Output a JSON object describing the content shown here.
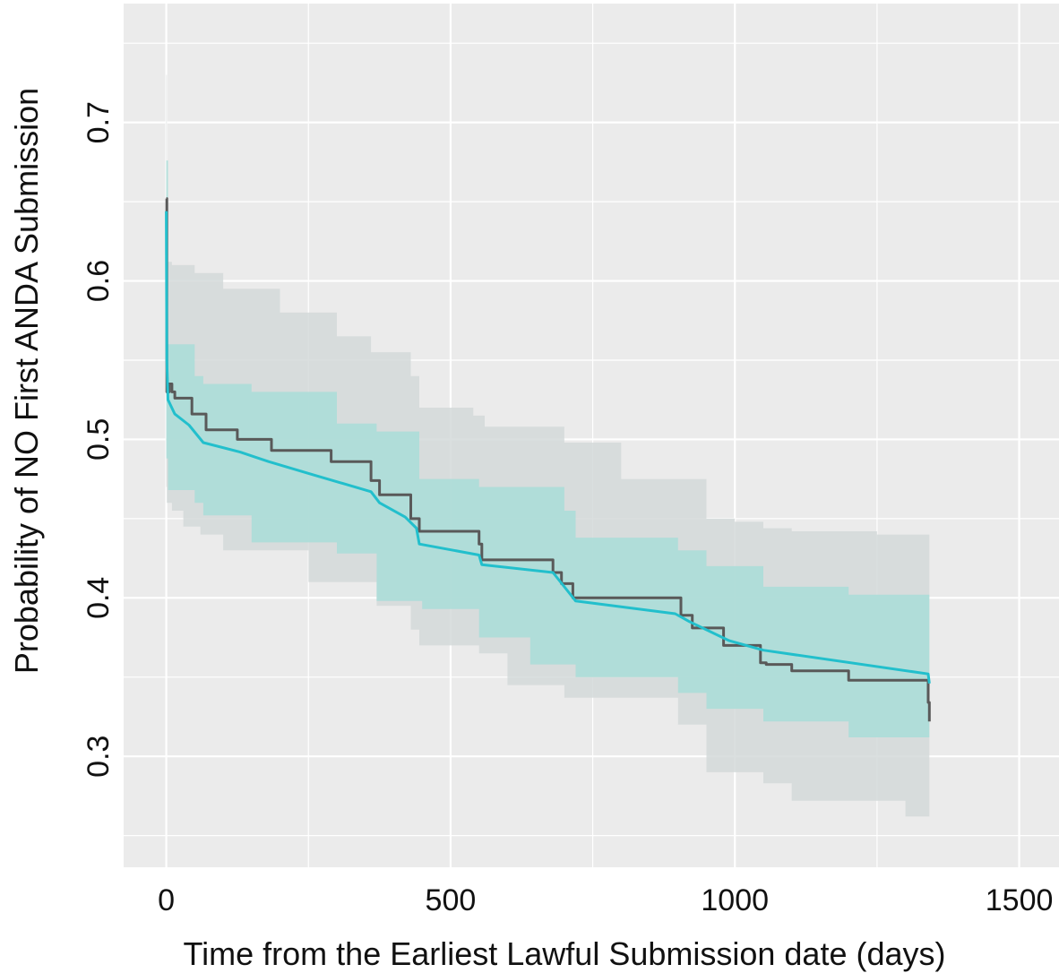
{
  "chart_data": {
    "type": "line",
    "title": "",
    "xlabel": "Time from the Earliest Lawful Submission date (days)",
    "ylabel": "Probability of NO First ANDA Submission",
    "xlim": [
      -75,
      1570
    ],
    "ylim": [
      0.23,
      0.775
    ],
    "x_ticks": [
      0,
      500,
      1000,
      1500
    ],
    "x_tick_labels": [
      "0",
      "500",
      "1000",
      "1500"
    ],
    "y_ticks": [
      0.3,
      0.4,
      0.5,
      0.6,
      0.7
    ],
    "y_tick_labels": [
      "0.3",
      "0.4",
      "0.5",
      "0.6",
      "0.7"
    ],
    "x_minor_ticks": [
      250,
      750,
      1250
    ],
    "y_minor_ticks": [
      0.25,
      0.35,
      0.45,
      0.55,
      0.65,
      0.75
    ],
    "grid": true,
    "legend": "none",
    "background_color": "#ebebeb",
    "grid_color": "#ffffff",
    "series": [
      {
        "color": "#595959",
        "band_color": "#d3d9d9",
        "step": true,
        "points": [
          [
            0,
            0.652
          ],
          [
            1,
            0.53
          ],
          [
            5,
            0.535
          ],
          [
            10,
            0.53
          ],
          [
            15,
            0.526
          ],
          [
            30,
            0.526
          ],
          [
            45,
            0.516
          ],
          [
            70,
            0.506
          ],
          [
            95,
            0.506
          ],
          [
            125,
            0.5
          ],
          [
            165,
            0.5
          ],
          [
            185,
            0.493
          ],
          [
            255,
            0.493
          ],
          [
            290,
            0.486
          ],
          [
            360,
            0.474
          ],
          [
            375,
            0.465
          ],
          [
            430,
            0.45
          ],
          [
            445,
            0.442
          ],
          [
            540,
            0.442
          ],
          [
            550,
            0.434
          ],
          [
            555,
            0.424
          ],
          [
            680,
            0.416
          ],
          [
            695,
            0.409
          ],
          [
            710,
            0.409
          ],
          [
            715,
            0.4
          ],
          [
            900,
            0.4
          ],
          [
            905,
            0.389
          ],
          [
            925,
            0.381
          ],
          [
            980,
            0.37
          ],
          [
            1010,
            0.37
          ],
          [
            1045,
            0.359
          ],
          [
            1055,
            0.358
          ],
          [
            1100,
            0.354
          ],
          [
            1200,
            0.348
          ],
          [
            1260,
            0.348
          ],
          [
            1340,
            0.334
          ],
          [
            1342,
            0.322
          ]
        ],
        "lower": [
          [
            0,
            0.572
          ],
          [
            1,
            0.47
          ],
          [
            10,
            0.46
          ],
          [
            30,
            0.455
          ],
          [
            60,
            0.445
          ],
          [
            100,
            0.44
          ],
          [
            250,
            0.43
          ],
          [
            370,
            0.41
          ],
          [
            430,
            0.395
          ],
          [
            445,
            0.38
          ],
          [
            550,
            0.37
          ],
          [
            600,
            0.365
          ],
          [
            700,
            0.345
          ],
          [
            730,
            0.337
          ],
          [
            900,
            0.337
          ],
          [
            950,
            0.32
          ],
          [
            1050,
            0.29
          ],
          [
            1100,
            0.283
          ],
          [
            1300,
            0.272
          ],
          [
            1342,
            0.262
          ]
        ],
        "upper": [
          [
            0,
            0.73
          ],
          [
            1,
            0.612
          ],
          [
            10,
            0.61
          ],
          [
            50,
            0.605
          ],
          [
            100,
            0.595
          ],
          [
            200,
            0.58
          ],
          [
            300,
            0.565
          ],
          [
            360,
            0.555
          ],
          [
            430,
            0.54
          ],
          [
            445,
            0.52
          ],
          [
            540,
            0.515
          ],
          [
            560,
            0.508
          ],
          [
            700,
            0.498
          ],
          [
            800,
            0.475
          ],
          [
            950,
            0.45
          ],
          [
            1000,
            0.448
          ],
          [
            1050,
            0.444
          ],
          [
            1100,
            0.442
          ],
          [
            1250,
            0.44
          ],
          [
            1342,
            0.43
          ]
        ]
      },
      {
        "color": "#22bfcc",
        "band_color": "#a9ddd8",
        "step": false,
        "points": [
          [
            0,
            0.644
          ],
          [
            1,
            0.55
          ],
          [
            3,
            0.525
          ],
          [
            15,
            0.516
          ],
          [
            40,
            0.509
          ],
          [
            65,
            0.498
          ],
          [
            130,
            0.492
          ],
          [
            180,
            0.486
          ],
          [
            255,
            0.478
          ],
          [
            360,
            0.467
          ],
          [
            375,
            0.46
          ],
          [
            420,
            0.451
          ],
          [
            440,
            0.444
          ],
          [
            445,
            0.434
          ],
          [
            550,
            0.427
          ],
          [
            555,
            0.421
          ],
          [
            680,
            0.416
          ],
          [
            720,
            0.398
          ],
          [
            895,
            0.39
          ],
          [
            920,
            0.385
          ],
          [
            990,
            0.373
          ],
          [
            1050,
            0.367
          ],
          [
            1340,
            0.352
          ],
          [
            1342,
            0.346
          ]
        ],
        "lower": [
          [
            0,
            0.6
          ],
          [
            3,
            0.488
          ],
          [
            50,
            0.468
          ],
          [
            65,
            0.46
          ],
          [
            150,
            0.452
          ],
          [
            300,
            0.435
          ],
          [
            370,
            0.428
          ],
          [
            450,
            0.398
          ],
          [
            550,
            0.393
          ],
          [
            640,
            0.375
          ],
          [
            720,
            0.358
          ],
          [
            900,
            0.35
          ],
          [
            950,
            0.34
          ],
          [
            1050,
            0.33
          ],
          [
            1200,
            0.322
          ],
          [
            1342,
            0.312
          ]
        ],
        "upper": [
          [
            0,
            0.676
          ],
          [
            3,
            0.56
          ],
          [
            50,
            0.54
          ],
          [
            65,
            0.535
          ],
          [
            150,
            0.53
          ],
          [
            300,
            0.51
          ],
          [
            370,
            0.505
          ],
          [
            445,
            0.475
          ],
          [
            550,
            0.47
          ],
          [
            700,
            0.455
          ],
          [
            720,
            0.438
          ],
          [
            900,
            0.43
          ],
          [
            950,
            0.42
          ],
          [
            1050,
            0.407
          ],
          [
            1200,
            0.402
          ],
          [
            1342,
            0.392
          ]
        ]
      }
    ]
  }
}
